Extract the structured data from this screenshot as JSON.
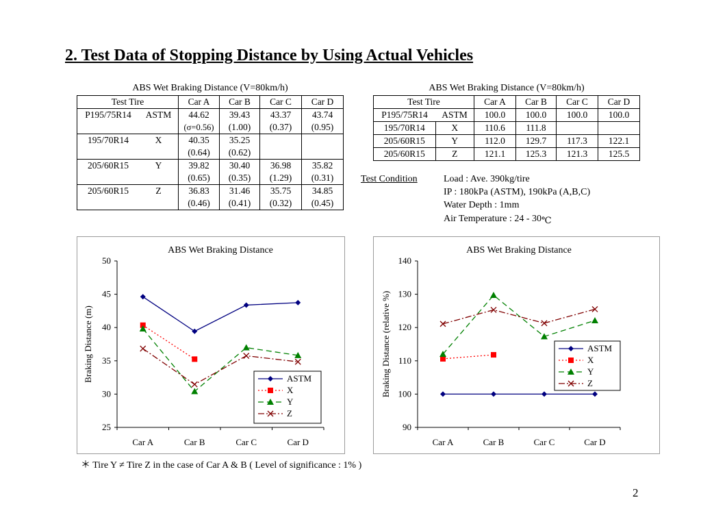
{
  "title": "2. Test Data of Stopping Distance by Using Actual Vehicles",
  "left_table": {
    "caption": "ABS Wet Braking Distance (V=80km/h)",
    "header": [
      "Test Tire",
      "Car A",
      "Car B",
      "Car C",
      "Car D"
    ],
    "rows": [
      {
        "size": "P195/75R14",
        "tire": "ASTM",
        "values": [
          "44.62",
          "39.43",
          "43.37",
          "43.74"
        ],
        "sigma": [
          "(σ=0.56)",
          "(1.00)",
          "(0.37)",
          "(0.95)"
        ]
      },
      {
        "size": "195/70R14",
        "tire": "X",
        "values": [
          "40.35",
          "35.25",
          "",
          ""
        ],
        "sigma": [
          "(0.64)",
          "(0.62)",
          "",
          ""
        ]
      },
      {
        "size": "205/60R15",
        "tire": "Y",
        "values": [
          "39.82",
          "30.40",
          "36.98",
          "35.82"
        ],
        "sigma": [
          "(0.65)",
          "(0.35)",
          "(1.29)",
          "(0.31)"
        ]
      },
      {
        "size": "205/60R15",
        "tire": "Z",
        "values": [
          "36.83",
          "31.46",
          "35.75",
          "34.85"
        ],
        "sigma": [
          "(0.46)",
          "(0.41)",
          "(0.32)",
          "(0.45)"
        ]
      }
    ]
  },
  "right_table": {
    "caption": "ABS Wet Braking Distance (V=80km/h)",
    "header": [
      "Test Tire",
      "Car A",
      "Car B",
      "Car C",
      "Car D"
    ],
    "rows": [
      {
        "size": "P195/75R14",
        "tire": "ASTM",
        "values": [
          "100.0",
          "100.0",
          "100.0",
          "100.0"
        ]
      },
      {
        "size": "195/70R14",
        "tire": "X",
        "values": [
          "110.6",
          "111.8",
          "",
          ""
        ]
      },
      {
        "size": "205/60R15",
        "tire": "Y",
        "values": [
          "112.0",
          "129.7",
          "117.3",
          "122.1"
        ]
      },
      {
        "size": "205/60R15",
        "tire": "Z",
        "values": [
          "121.1",
          "125.3",
          "121.3",
          "125.5"
        ]
      }
    ]
  },
  "test_condition": {
    "label": "Test Condition",
    "lines": [
      "Load : Ave. 390kg/tire",
      "IP : 180kPa (ASTM), 190kPa (A,B,C)",
      "Water Depth : 1mm",
      "Air Temperature : 24 - 30"
    ],
    "unit": "℃"
  },
  "chart_data": [
    {
      "type": "line",
      "title": "ABS Wet Braking Distance",
      "xlabel": "",
      "ylabel": "Braking Distance (m)",
      "categories": [
        "Car A",
        "Car B",
        "Car C",
        "Car D"
      ],
      "ylim": [
        25,
        50
      ],
      "yticks": [
        "25",
        "30",
        "35",
        "40",
        "45",
        "50"
      ],
      "legend_position": "bottom-right",
      "series": [
        {
          "name": "ASTM",
          "values": [
            44.62,
            39.43,
            43.37,
            43.74
          ],
          "color": "#000080",
          "dash": "",
          "marker": "diamond"
        },
        {
          "name": "X",
          "values": [
            40.35,
            35.25,
            null,
            null
          ],
          "color": "#ff0000",
          "dash": "2,3",
          "marker": "square"
        },
        {
          "name": "Y",
          "values": [
            39.82,
            30.4,
            36.98,
            35.82
          ],
          "color": "#008000",
          "dash": "8,5",
          "marker": "triangle"
        },
        {
          "name": "Z",
          "values": [
            36.83,
            31.46,
            35.75,
            34.85
          ],
          "color": "#800000",
          "dash": "9,3,2,3",
          "marker": "x"
        }
      ]
    },
    {
      "type": "line",
      "title": "ABS Wet Braking Distance",
      "xlabel": "",
      "ylabel": "Braking Distance (relative %)",
      "categories": [
        "Car A",
        "Car B",
        "Car C",
        "Car D"
      ],
      "ylim": [
        90,
        140
      ],
      "yticks": [
        "90",
        "100",
        "110",
        "120",
        "130",
        "140"
      ],
      "legend_position": "right",
      "series": [
        {
          "name": "ASTM",
          "values": [
            100.0,
            100.0,
            100.0,
            100.0
          ],
          "color": "#000080",
          "dash": "",
          "marker": "diamond"
        },
        {
          "name": "X",
          "values": [
            110.6,
            111.8,
            null,
            null
          ],
          "color": "#ff0000",
          "dash": "2,3",
          "marker": "square"
        },
        {
          "name": "Y",
          "values": [
            112.0,
            129.7,
            117.3,
            122.1
          ],
          "color": "#008000",
          "dash": "8,5",
          "marker": "triangle"
        },
        {
          "name": "Z",
          "values": [
            121.1,
            125.3,
            121.3,
            125.5
          ],
          "color": "#800000",
          "dash": "9,3,2,3",
          "marker": "x"
        }
      ]
    }
  ],
  "footnote": "＊ Tire Y ≠ Tire Z in the case of Car A & B ( Level of significance : 1% )",
  "page_number": "2"
}
